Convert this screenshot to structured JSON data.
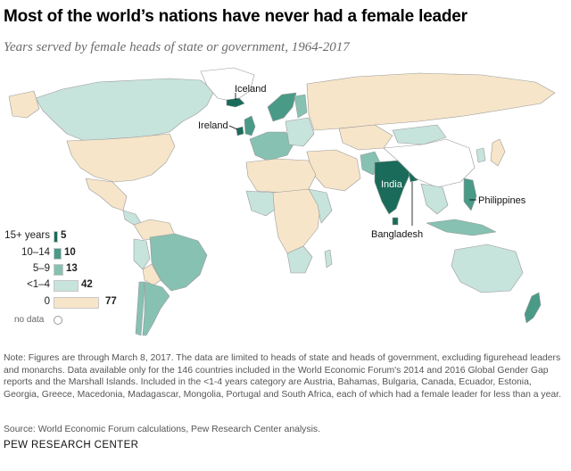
{
  "title": "Most of the world’s nations have never had a female leader",
  "subtitle": "Years served by female heads of state or government, 1964-2017",
  "map_labels": {
    "iceland": "Iceland",
    "ireland": "Ireland",
    "india": "India",
    "bangladesh": "Bangladesh",
    "philippines": "Philippines"
  },
  "legend": {
    "rows": [
      {
        "label": "15+ years",
        "count": "5",
        "color": "#1a6b5a"
      },
      {
        "label": "10–14",
        "count": "10",
        "color": "#4a9a88"
      },
      {
        "label": "5–9",
        "count": "13",
        "color": "#86c1b2"
      },
      {
        "label": "<1–4",
        "count": "42",
        "color": "#c6e3dc"
      },
      {
        "label": "0",
        "count": "77",
        "color": "#f6e5c9"
      }
    ],
    "nodata": "no data"
  },
  "colors": {
    "y15plus": "#1a6b5a",
    "y10_14": "#4a9a88",
    "y5_9": "#86c1b2",
    "y1_4": "#c6e3dc",
    "zero": "#f6e5c9",
    "nodata": "#ffffff"
  },
  "note": "Note: Figures are through March 8, 2017. The data are limited to heads of state and heads of government, excluding figurehead leaders and monarchs. Data available only for the 146 countries included in the World Economic Forum's 2014 and 2016 Global Gender Gap reports and the Marshall Islands. Included in the <1-4 years category are Austria, Bahamas, Bulgaria, Canada, Ecuador, Estonia, Georgia, Greece, Macedonia, Madagascar, Mongolia, Portugal and South Africa, each of which had a female leader for less than a year.",
  "source": "Source: World Economic Forum calculations, Pew Research Center analysis.",
  "logo": "PEW RESEARCH CENTER"
}
